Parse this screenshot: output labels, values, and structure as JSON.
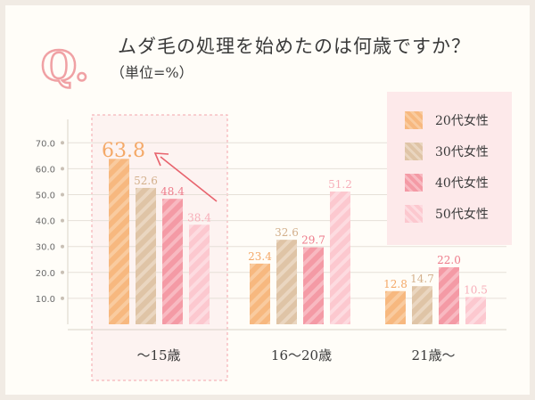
{
  "header": {
    "q_letter": "Q.",
    "question": "ムダ毛の処理を始めたのは何歳ですか？",
    "unit_note": "（単位=%）"
  },
  "colors": {
    "q_mark": "#f0a1a4",
    "arrow": "#e8636d",
    "highlight_border": "#f3a4aa",
    "highlight_fill": "#fdf3f1",
    "grid": "#e6e0d8"
  },
  "callout": {
    "value_label": "63.8",
    "icon": "arrow-up-left-icon"
  },
  "chart_data": {
    "type": "bar",
    "categories": [
      "～15歳",
      "16～20歳",
      "21歳～"
    ],
    "series": [
      {
        "name": "20代女性",
        "values": [
          63.8,
          23.4,
          12.8
        ],
        "color": "#f7b87f",
        "stripe": "#f9cb9f",
        "label_color": "#f4a968"
      },
      {
        "name": "30代女性",
        "values": [
          52.6,
          32.6,
          14.7
        ],
        "color": "#dfc4a6",
        "stripe": "#ead6c0",
        "label_color": "#d3b08c"
      },
      {
        "name": "40代女性",
        "values": [
          48.4,
          29.7,
          22.0
        ],
        "color": "#f49aa5",
        "stripe": "#f8b9c1",
        "label_color": "#ee7c8b"
      },
      {
        "name": "50代女性",
        "values": [
          38.4,
          51.2,
          10.5
        ],
        "color": "#fcc8cf",
        "stripe": "#fddbe0",
        "label_color": "#f7aeb9"
      }
    ],
    "data_labels": [
      [
        "63.8",
        "23.4",
        "12.8"
      ],
      [
        "52.6",
        "32.6",
        "14.7"
      ],
      [
        "48.4",
        "29.7",
        "22.0"
      ],
      [
        "38.4",
        "51.2",
        "10.5"
      ]
    ],
    "yticks": [
      "10.0",
      "20.0",
      "30.0",
      "40.0",
      "50.0",
      "60.0",
      "70.0"
    ],
    "ytick_values": [
      10,
      20,
      30,
      40,
      50,
      60,
      70
    ],
    "ylim": [
      0,
      76
    ],
    "grid": true,
    "legend_position": "top-right",
    "highlighted_category": "～15歳"
  }
}
